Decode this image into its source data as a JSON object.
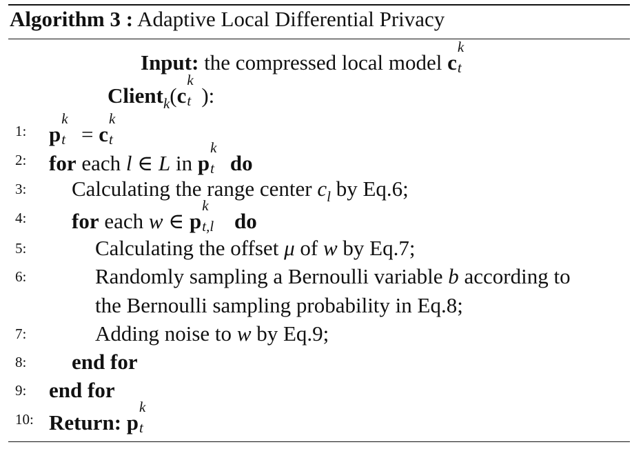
{
  "algorithm": {
    "label": "Algorithm 3 :",
    "title": "Adaptive Local Differential Privacy"
  },
  "input": {
    "keyword": "Input:",
    "text": "the compressed local model",
    "symbol": "c",
    "sup": "k",
    "sub": "t"
  },
  "client": {
    "keyword": "Client",
    "sub": "k",
    "open": "(",
    "symbol": "c",
    "sup": "k",
    "tsub": "t",
    "close": "):"
  },
  "steps": [
    {
      "num": "1:",
      "p": "p",
      "k": "k",
      "t": "t",
      "eq": " = ",
      "c": "c"
    },
    {
      "num": "2:",
      "kw1": "for",
      "t1": " each ",
      "l": "l",
      "in1": " ∈ ",
      "L": "L",
      "t2": " in ",
      "p": "p",
      "k": "k",
      "t": "t",
      "kw2": "do"
    },
    {
      "num": "3:",
      "t1": "Calculating the range center ",
      "c": "c",
      "l": "l",
      "t2": " by Eq.6;"
    },
    {
      "num": "4:",
      "kw1": "for",
      "t1": " each ",
      "w": "w",
      "in1": " ∈ ",
      "p": "p",
      "k": "k",
      "tl": "t,l",
      "kw2": "do"
    },
    {
      "num": "5:",
      "t1": "Calculating the offset ",
      "mu": "μ",
      "t2": " of ",
      "w": "w",
      "t3": " by Eq.7;"
    },
    {
      "num": "6:",
      "t1": "Randomly sampling a Bernoulli variable ",
      "b": "b",
      "t2": " according to",
      "t3": "the Bernoulli sampling probability in Eq.8;"
    },
    {
      "num": "7:",
      "t1": "Adding noise to ",
      "w": "w",
      "t2": " by Eq.9;"
    },
    {
      "num": "8:",
      "kw": "end for"
    },
    {
      "num": "9:",
      "kw": "end for"
    },
    {
      "num": "10:",
      "kw": "Return:",
      "p": "p",
      "k": "k",
      "t": "t"
    }
  ]
}
